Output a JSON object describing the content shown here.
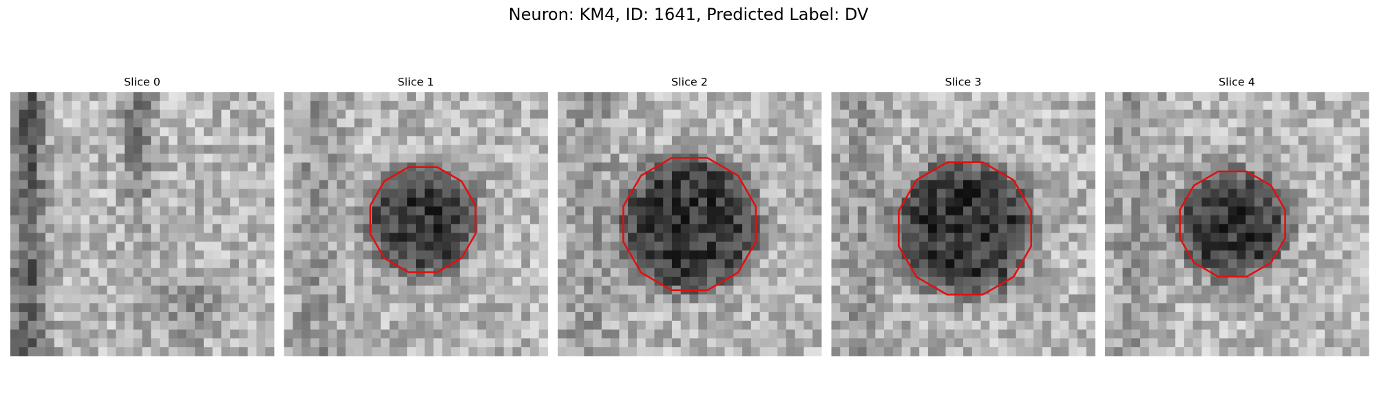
{
  "figure": {
    "title": "Neuron: KM4, ID: 1641, Predicted Label: DV",
    "panels": [
      {
        "title": "Slice 0"
      },
      {
        "title": "Slice 1"
      },
      {
        "title": "Slice 2"
      },
      {
        "title": "Slice 3"
      },
      {
        "title": "Slice 4"
      }
    ]
  }
}
